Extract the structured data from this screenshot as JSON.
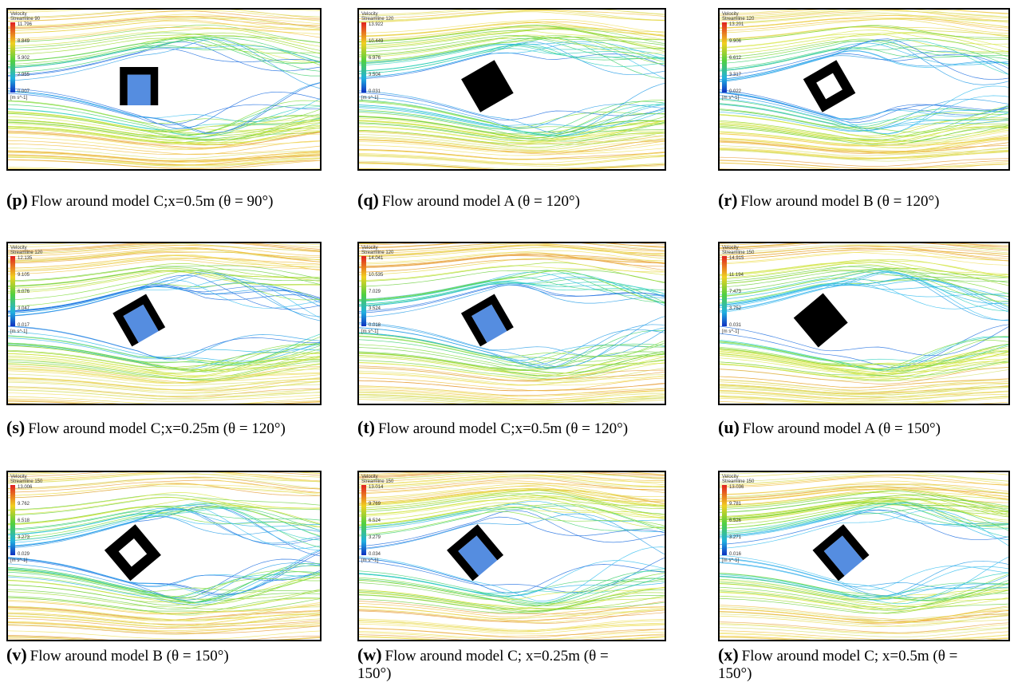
{
  "panels": [
    {
      "label": "(p)",
      "caption": "Flow around model C;x=0.5m (θ = 90°)",
      "legend": {
        "title": "Velocity",
        "subtitle": "Streamline 90",
        "values": [
          "11.796",
          "8.849",
          "5.902",
          "2.955",
          "0.007"
        ],
        "unit": "[m s^-1]"
      }
    },
    {
      "label": "(q)",
      "caption": "Flow around model A (θ = 120°)",
      "legend": {
        "title": "Velocity",
        "subtitle": "Streamline 120",
        "values": [
          "13.922",
          "10.449",
          "6.976",
          "3.504",
          "0.031"
        ],
        "unit": "[m s^-1]"
      }
    },
    {
      "label": "(r)",
      "caption": "Flow around model B (θ = 120°)",
      "legend": {
        "title": "Velocity",
        "subtitle": "Streamline 120",
        "values": [
          "13.201",
          "9.906",
          "6.612",
          "3.317",
          "0.022"
        ],
        "unit": "[m s^-1]"
      }
    },
    {
      "label": "(s)",
      "caption": "Flow around model C;x=0.25m (θ = 120°)",
      "legend": {
        "title": "Velocity",
        "subtitle": "Streamline 120",
        "values": [
          "12.135",
          "9.105",
          "6.076",
          "3.047",
          "0.017"
        ],
        "unit": "[m s^-1]"
      }
    },
    {
      "label": "(t)",
      "caption": "Flow around model C;x=0.5m (θ = 120°)",
      "legend": {
        "title": "Velocity",
        "subtitle": "Streamline 120",
        "values": [
          "14.041",
          "10.535",
          "7.029",
          "3.524",
          "0.018"
        ],
        "unit": "[m s^-1]"
      }
    },
    {
      "label": "(u)",
      "caption": "Flow around model A (θ = 150°)",
      "legend": {
        "title": "Velocity",
        "subtitle": "Streamline 150",
        "values": [
          "14.915",
          "11.194",
          "7.473",
          "3.752",
          "0.031"
        ],
        "unit": "[m s^-1]"
      }
    },
    {
      "label": "(v)",
      "caption": "Flow around model B (θ = 150°)",
      "legend": {
        "title": "Velocity",
        "subtitle": "Streamline 150",
        "values": [
          "13.006",
          "9.762",
          "6.518",
          "3.273",
          "0.029"
        ],
        "unit": "[m s^-1]"
      }
    },
    {
      "label": "(w)",
      "caption": "Flow around model C; x=0.25m (θ = 150°)",
      "legend": {
        "title": "Velocity",
        "subtitle": "Streamline 150",
        "values": [
          "13.014",
          "9.769",
          "6.524",
          "3.279",
          "0.034"
        ],
        "unit": "[m s^-1]"
      }
    },
    {
      "label": "(x)",
      "caption": "Flow around model C; x=0.5m (θ = 150°)",
      "legend": {
        "title": "Velocity",
        "subtitle": "Streamline 150",
        "values": [
          "13.036",
          "9.781",
          "6.526",
          "3.271",
          "0.016"
        ],
        "unit": "[m s^-1]"
      }
    }
  ]
}
